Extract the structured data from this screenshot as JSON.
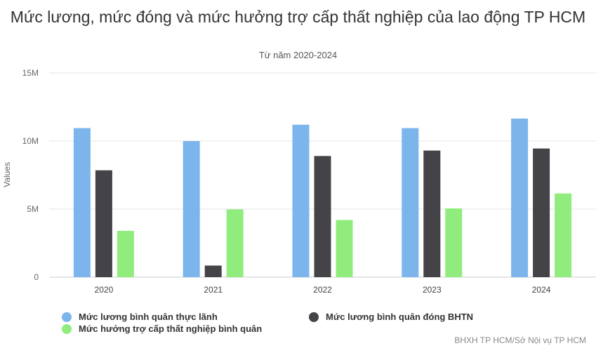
{
  "chart_data": {
    "type": "bar",
    "title": "Mức lương, mức đóng và mức hưởng trợ cấp thất nghiệp của lao động TP HCM",
    "subtitle": "Từ năm 2020-2024",
    "ylabel": "Values",
    "xlabel": "",
    "ylim": [
      0,
      15000000
    ],
    "yticks": [
      {
        "value": 0,
        "label": "0"
      },
      {
        "value": 5000000,
        "label": "5M"
      },
      {
        "value": 10000000,
        "label": "10M"
      },
      {
        "value": 15000000,
        "label": "15M"
      }
    ],
    "categories": [
      "2020",
      "2021",
      "2022",
      "2023",
      "2024"
    ],
    "series": [
      {
        "name": "Mức lương bình quân thực lãnh",
        "color": "#7cb5ec",
        "values": [
          10950000,
          10000000,
          11200000,
          10950000,
          11650000
        ]
      },
      {
        "name": "Mức lương bình quân đóng BHTN",
        "color": "#434348",
        "values": [
          7850000,
          850000,
          8900000,
          9300000,
          9450000
        ]
      },
      {
        "name": "Mức hưởng trợ cấp thất nghiệp bình quân",
        "color": "#90ed7d",
        "values": [
          3400000,
          4980000,
          4200000,
          5050000,
          6150000
        ]
      }
    ],
    "grid": true,
    "legend_position": "bottom-left"
  },
  "source": "BHXH TP HCM/Sở Nội vụ TP HCM"
}
